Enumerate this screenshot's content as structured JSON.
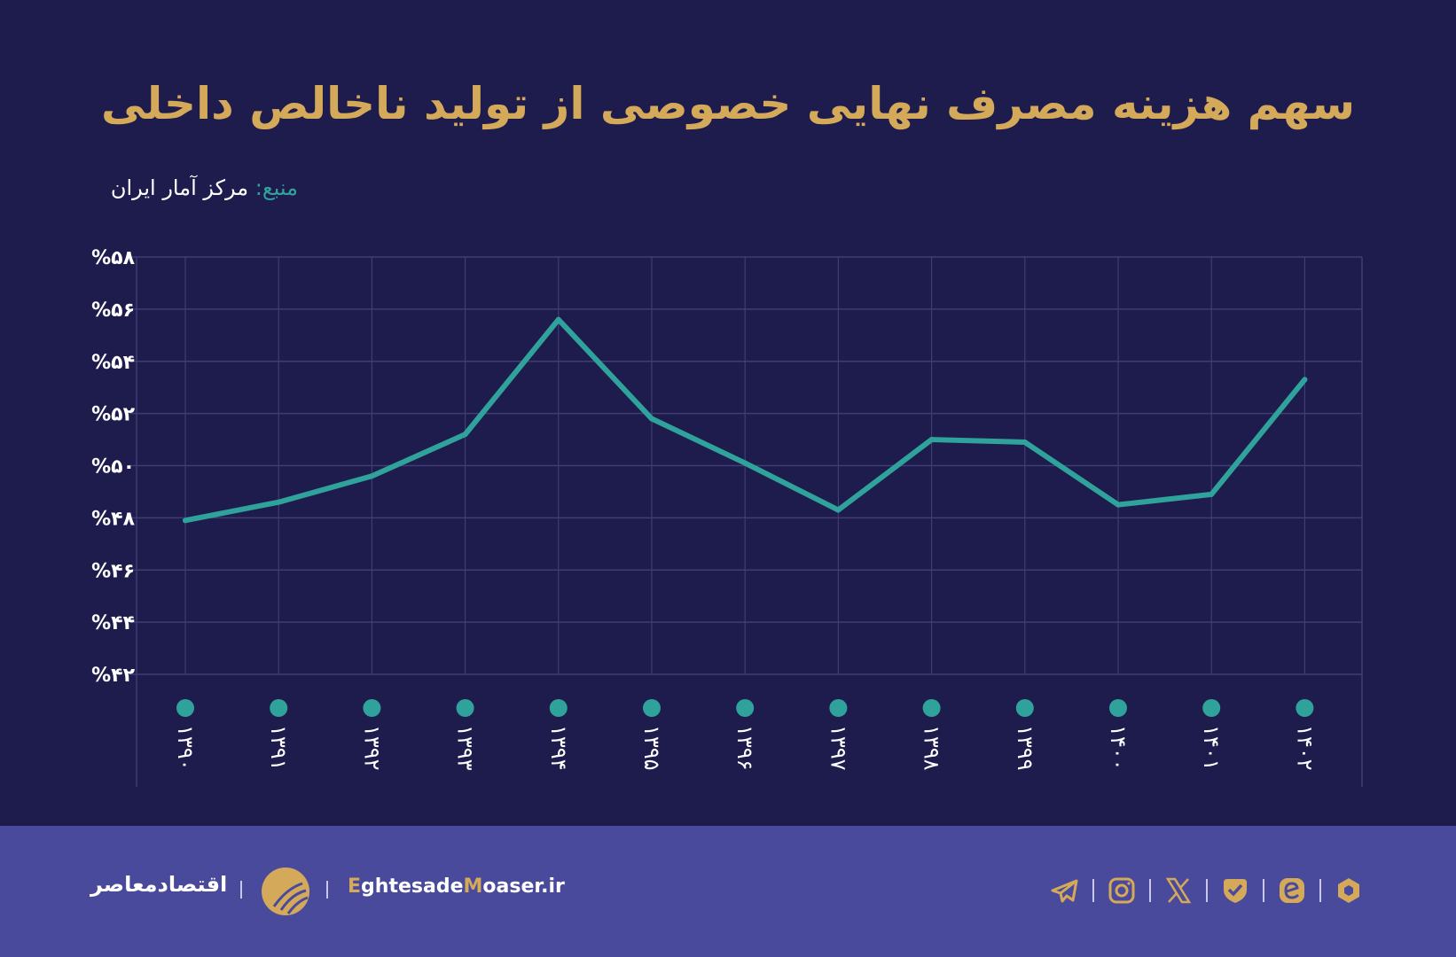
{
  "title": "سهم هزینه مصرف نهایی خصوصی از تولید ناخالص داخلی",
  "source": {
    "label": "منبع:",
    "value": "مرکز آمار ایران"
  },
  "colors": {
    "background": "#1e1c4d",
    "line": "#2fa39b",
    "title": "#d4a95a",
    "footer": "#4a4a9c",
    "grid": "#3f3d72"
  },
  "chart_data": {
    "type": "line",
    "title": "سهم هزینه مصرف نهایی خصوصی از تولید ناخالص داخلی",
    "xlabel": "",
    "ylabel": "",
    "categories": [
      "۱۳۹۰",
      "۱۳۹۱",
      "۱۳۹۲",
      "۱۳۹۳",
      "۱۳۹۴",
      "۱۳۹۵",
      "۱۳۹۶",
      "۱۳۹۷",
      "۱۳۹۸",
      "۱۳۹۹",
      "۱۴۰۰",
      "۱۴۰۱",
      "۱۴۰۲"
    ],
    "series": [
      {
        "values": [
          47.9,
          48.6,
          49.6,
          51.2,
          55.6,
          51.8,
          50.1,
          48.3,
          51.0,
          50.9,
          48.5,
          48.9,
          53.3
        ]
      }
    ],
    "ylim": [
      42,
      58
    ],
    "yticks": [
      42,
      44,
      46,
      48,
      50,
      52,
      54,
      56,
      58
    ],
    "ytick_labels": [
      "%۴۲",
      "%۴۴",
      "%۴۶",
      "%۴۸",
      "%۵۰",
      "%۵۲",
      "%۵۴",
      "%۵۶",
      "%۵۸"
    ],
    "grid": true,
    "legend": "none"
  },
  "footer": {
    "brand_fa": "اقتصادمعاصر",
    "site_parts": [
      "E",
      "ghtesade",
      "M",
      "oaser.ir"
    ],
    "social_icons": [
      "telegram-icon",
      "instagram-icon",
      "x-icon",
      "check-heart-icon",
      "e-icon",
      "hexagon-icon"
    ]
  }
}
